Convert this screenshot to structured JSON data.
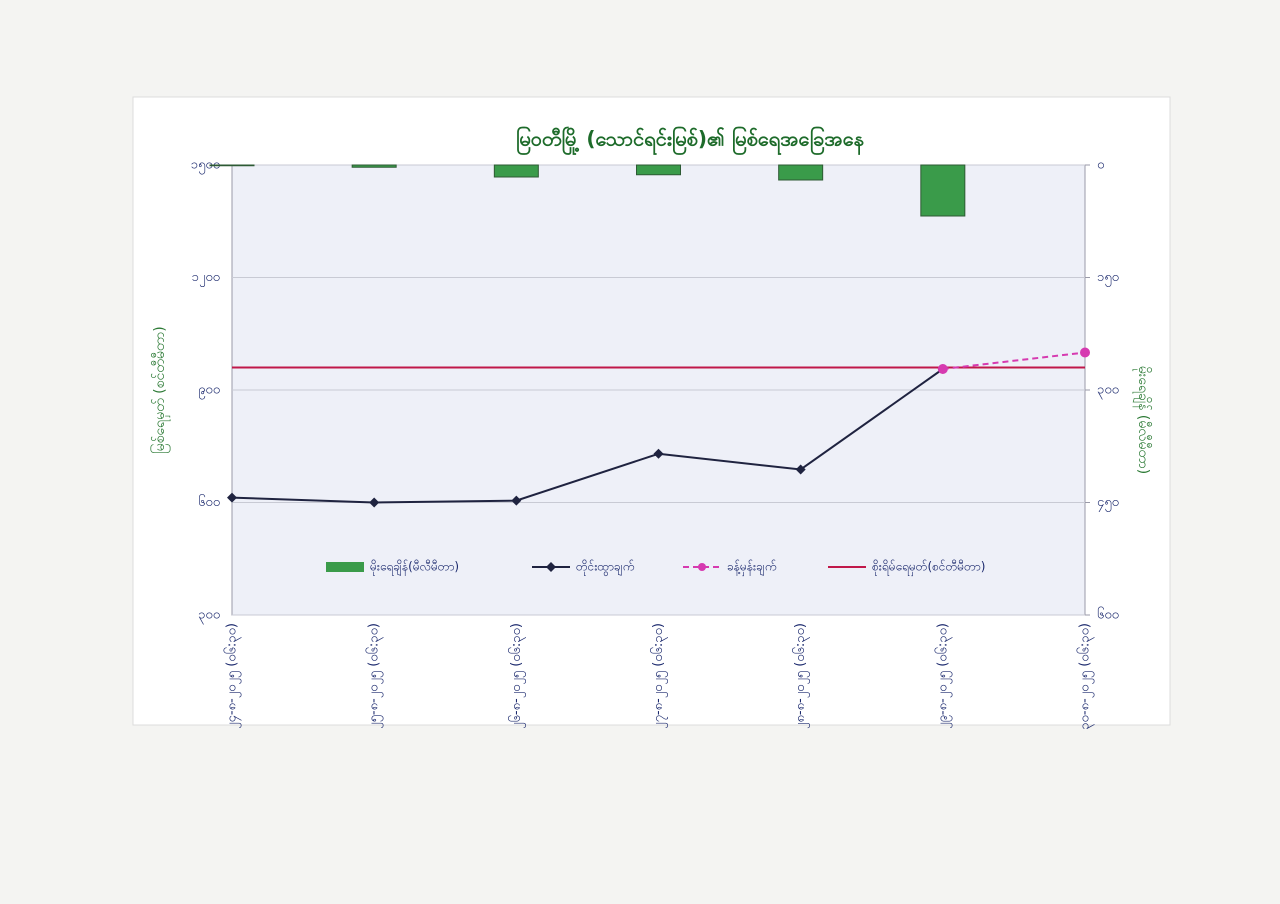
{
  "chart_data": {
    "type": "combo",
    "title": "မြဝတီမြို့ (သောင်ရင်းမြစ်)၏ မြစ်ရေအခြေအနေ",
    "ylabel": "မြစ်ရေမှတ် (စင်တီမီတာ)",
    "y2label": "မိုးရေချိန် (မီလီမီတာ)",
    "categories": [
      "၂၄-၈-၂၀၂၅ (၀၆:၃၀)",
      "၂၅-၈-၂၀၂၅ (၀၆:၃၀)",
      "၂၆-၈-၂၀၂၅ (၀၆:၃၀)",
      "၂၇-၈-၂၀၂၅ (၀၆:၃၀)",
      "၂၈-၈-၂၀၂၅ (၀၆:၃၀)",
      "၂၉-၈-၂၀၂၅ (၀၆:၃၀)",
      "၃၀-၈-၂၀၂၅ (၀၆:၃၀)"
    ],
    "ylim": [
      300,
      1500
    ],
    "yticks": [
      {
        "value": 300,
        "label": "၃၀၀"
      },
      {
        "value": 600,
        "label": "၆၀၀"
      },
      {
        "value": 900,
        "label": "၉၀၀"
      },
      {
        "value": 1200,
        "label": "၁၂၀၀"
      },
      {
        "value": 1500,
        "label": "၁၅၀၀"
      }
    ],
    "y2lim": [
      600,
      0
    ],
    "y2ticks": [
      {
        "value": 0,
        "label": "၀"
      },
      {
        "value": 150,
        "label": "၁၅၀"
      },
      {
        "value": 300,
        "label": "၃၀၀"
      },
      {
        "value": 450,
        "label": "၄၅၀"
      },
      {
        "value": 600,
        "label": "၆၀၀"
      }
    ],
    "grid": true,
    "series": [
      {
        "name": "မိုးရေချိန်(မီလီမီတာ)",
        "type": "bar",
        "axis": "y2",
        "color": "#3a9b4a",
        "values": [
          1,
          3,
          16,
          13,
          20,
          68,
          null
        ]
      },
      {
        "name": "တိုင်းထွာချက်",
        "type": "line",
        "color": "#1f2340",
        "marker": "diamond",
        "values": [
          613,
          600,
          605,
          730,
          688,
          956,
          null
        ]
      },
      {
        "name": "ခန့်မှန်းချက်",
        "type": "line",
        "dashed": true,
        "color": "#d63ab0",
        "marker": "circle",
        "values": [
          null,
          null,
          null,
          null,
          null,
          956,
          1000
        ]
      }
    ],
    "threshold": {
      "name": "စိုးရိမ်ရေမှတ်(စင်တီမီတာ)",
      "color": "#c0184a",
      "value": 960
    }
  }
}
